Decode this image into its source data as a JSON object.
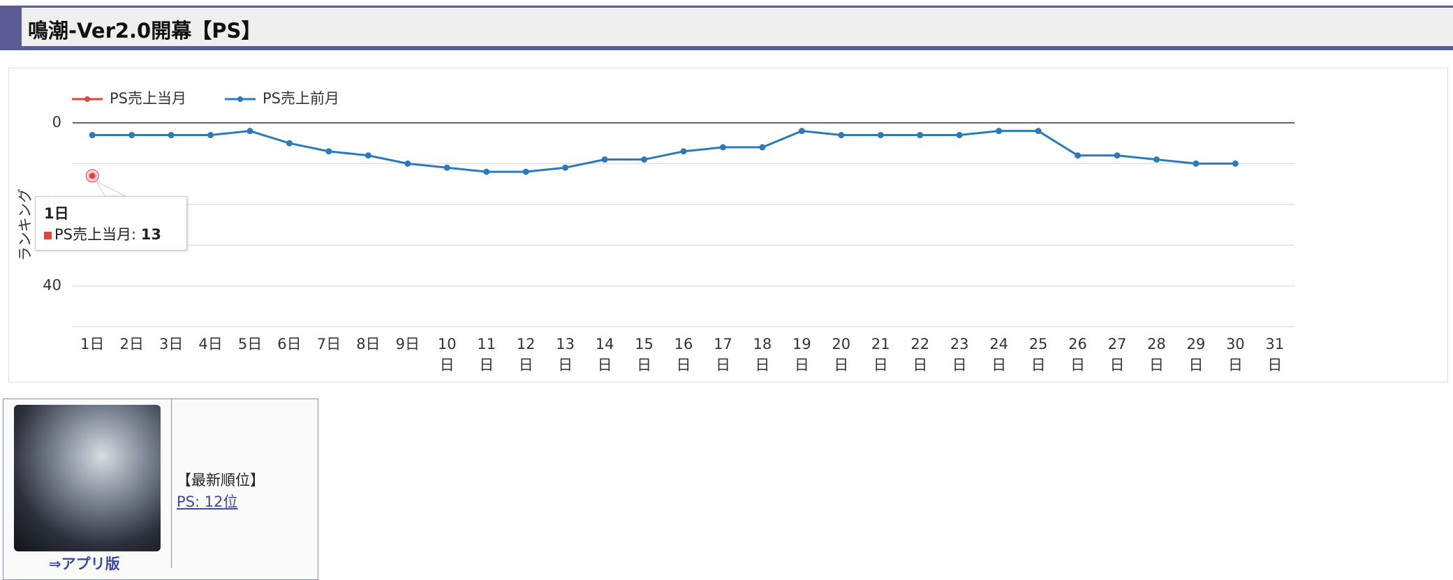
{
  "header": {
    "title": "鳴潮-Ver2.0開幕【PS】"
  },
  "chart_data": {
    "type": "line",
    "y_label": "ランキング",
    "categories": [
      "1日",
      "2日",
      "3日",
      "4日",
      "5日",
      "6日",
      "7日",
      "8日",
      "9日",
      "10日",
      "11日",
      "12日",
      "13日",
      "14日",
      "15日",
      "16日",
      "17日",
      "18日",
      "19日",
      "20日",
      "21日",
      "22日",
      "23日",
      "24日",
      "25日",
      "26日",
      "27日",
      "28日",
      "29日",
      "30日",
      "31日"
    ],
    "series": [
      {
        "name": "PS売上当月",
        "color": "#e4433a",
        "values": [
          13,
          null,
          null,
          null,
          null,
          null,
          null,
          null,
          null,
          null,
          null,
          null,
          null,
          null,
          null,
          null,
          null,
          null,
          null,
          null,
          null,
          null,
          null,
          null,
          null,
          null,
          null,
          null,
          null,
          null,
          null
        ]
      },
      {
        "name": "PS売上前月",
        "color": "#2b7bb9",
        "values": [
          3,
          3,
          3,
          3,
          2,
          5,
          7,
          8,
          10,
          11,
          12,
          12,
          11,
          9,
          9,
          7,
          6,
          6,
          2,
          3,
          3,
          3,
          3,
          2,
          2,
          8,
          8,
          9,
          10,
          10,
          null
        ]
      }
    ],
    "ylim": [
      0,
      50
    ],
    "y_reversed": true,
    "yticks": [
      0,
      20,
      40
    ],
    "minor_yticks": [
      10,
      30,
      50
    ],
    "grid": true,
    "legend": "top-left",
    "tooltip_separator": ":"
  },
  "sidebar": {
    "app_link": "⇒アプリ版",
    "latest_heading": "【最新順位】",
    "latest_link": "PS: 12位"
  }
}
